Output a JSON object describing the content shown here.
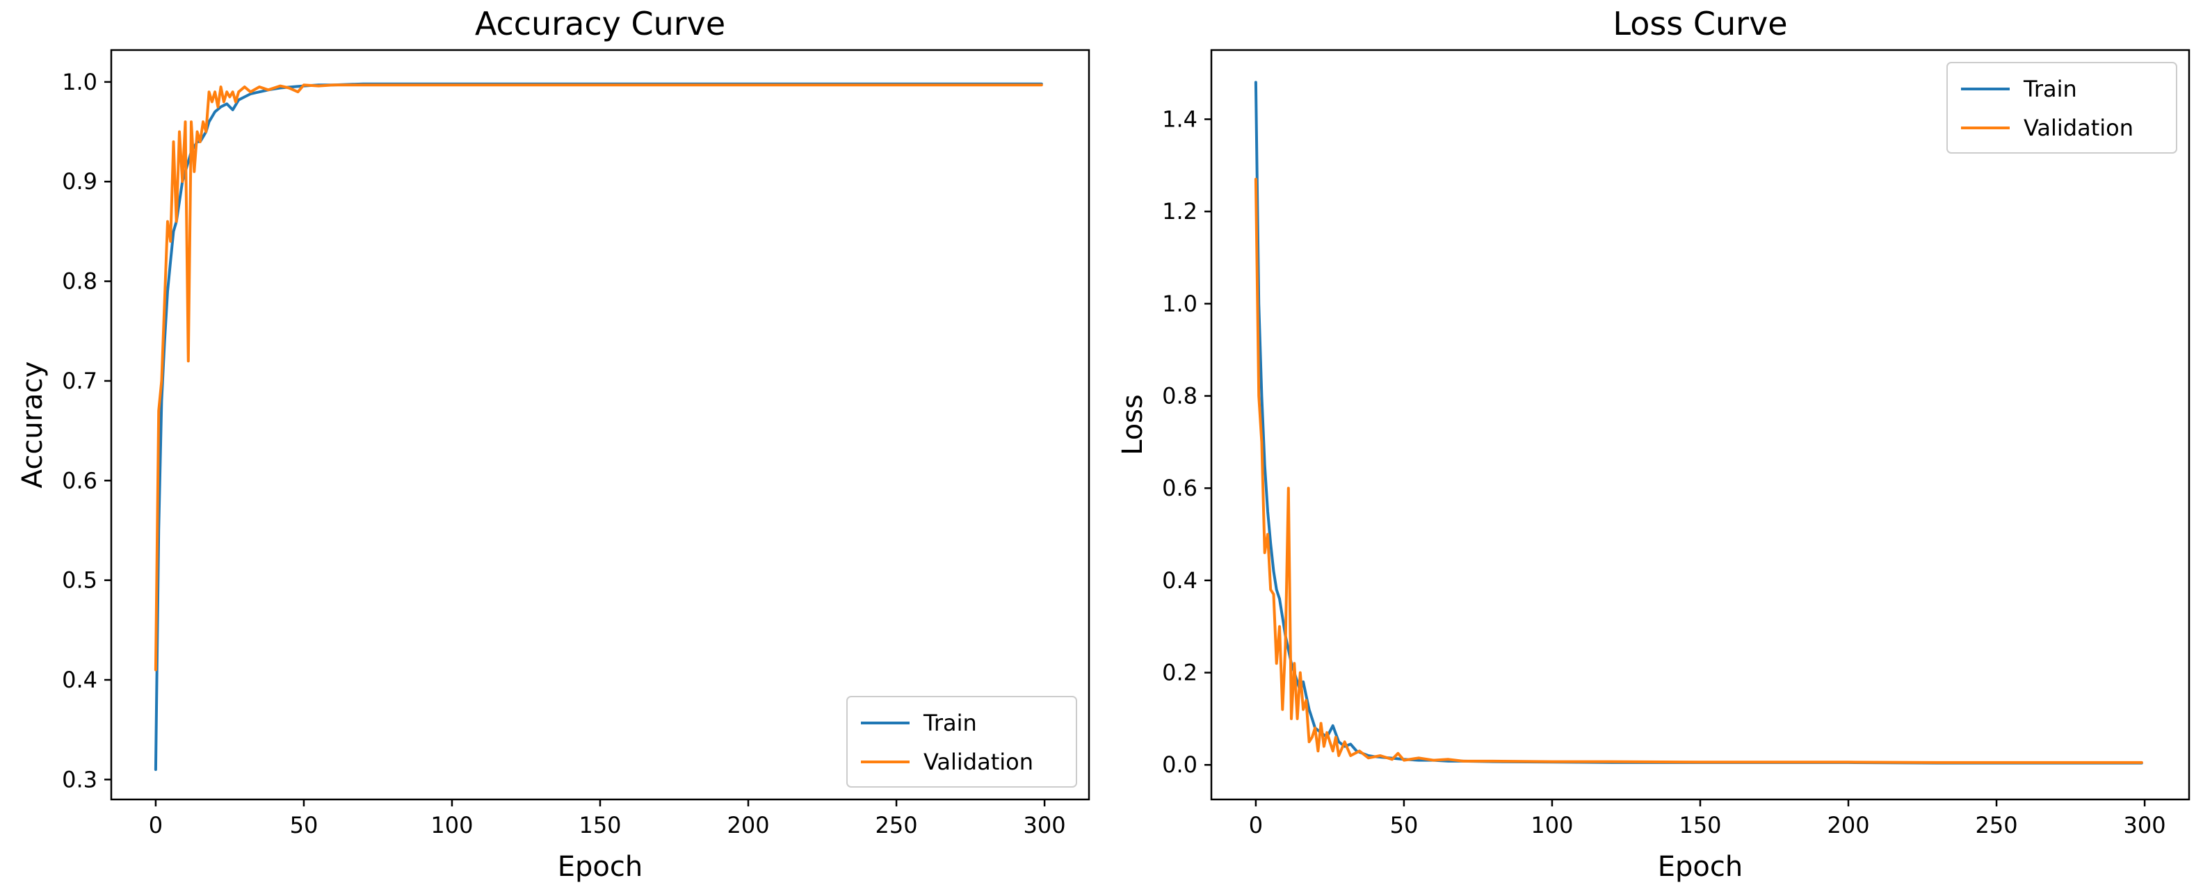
{
  "chart_data": [
    {
      "type": "line",
      "title": "Accuracy Curve",
      "xlabel": "Epoch",
      "ylabel": "Accuracy",
      "xlim": [
        -15,
        315
      ],
      "ylim": [
        0.28,
        1.032
      ],
      "xticks": [
        0,
        50,
        100,
        150,
        200,
        250,
        300
      ],
      "yticks": [
        0.3,
        0.4,
        0.5,
        0.6,
        0.7,
        0.8,
        0.9,
        1.0
      ],
      "ytick_labels": [
        "0.3",
        "0.4",
        "0.5",
        "0.6",
        "0.7",
        "0.8",
        "0.9",
        "1.0"
      ],
      "legend_position": "lower-right",
      "grid": false,
      "series": [
        {
          "name": "Train",
          "color": "#1f77b4",
          "x": [
            0,
            1,
            2,
            3,
            4,
            5,
            6,
            7,
            8,
            9,
            10,
            11,
            12,
            13,
            14,
            15,
            16,
            17,
            18,
            19,
            20,
            22,
            24,
            26,
            28,
            30,
            32,
            35,
            38,
            42,
            46,
            50,
            55,
            60,
            70,
            80,
            100,
            120,
            150,
            180,
            200,
            230,
            260,
            280,
            299
          ],
          "y": [
            0.31,
            0.55,
            0.68,
            0.74,
            0.79,
            0.82,
            0.85,
            0.86,
            0.88,
            0.9,
            0.91,
            0.92,
            0.93,
            0.935,
            0.94,
            0.94,
            0.945,
            0.95,
            0.96,
            0.965,
            0.97,
            0.975,
            0.978,
            0.972,
            0.982,
            0.985,
            0.988,
            0.99,
            0.992,
            0.994,
            0.995,
            0.996,
            0.997,
            0.997,
            0.998,
            0.998,
            0.998,
            0.998,
            0.998,
            0.998,
            0.998,
            0.998,
            0.998,
            0.998,
            0.998
          ]
        },
        {
          "name": "Validation",
          "color": "#ff7f0e",
          "x": [
            0,
            1,
            2,
            3,
            4,
            5,
            6,
            7,
            8,
            9,
            10,
            11,
            12,
            13,
            14,
            15,
            16,
            17,
            18,
            19,
            20,
            21,
            22,
            23,
            24,
            25,
            26,
            27,
            28,
            30,
            32,
            35,
            38,
            42,
            45,
            48,
            50,
            55,
            60,
            70,
            80,
            100,
            120,
            150,
            180,
            200,
            230,
            260,
            280,
            299
          ],
          "y": [
            0.41,
            0.67,
            0.7,
            0.78,
            0.86,
            0.84,
            0.94,
            0.86,
            0.95,
            0.9,
            0.96,
            0.72,
            0.96,
            0.91,
            0.95,
            0.94,
            0.96,
            0.95,
            0.99,
            0.98,
            0.99,
            0.975,
            0.995,
            0.98,
            0.99,
            0.985,
            0.99,
            0.98,
            0.99,
            0.995,
            0.99,
            0.995,
            0.992,
            0.996,
            0.994,
            0.99,
            0.997,
            0.996,
            0.997,
            0.997,
            0.997,
            0.997,
            0.997,
            0.997,
            0.997,
            0.997,
            0.997,
            0.997,
            0.997,
            0.997
          ]
        }
      ]
    },
    {
      "type": "line",
      "title": "Loss Curve",
      "xlabel": "Epoch",
      "ylabel": "Loss",
      "xlim": [
        -15,
        315
      ],
      "ylim": [
        -0.075,
        1.55
      ],
      "xticks": [
        0,
        50,
        100,
        150,
        200,
        250,
        300
      ],
      "yticks": [
        0.0,
        0.2,
        0.4,
        0.6,
        0.8,
        1.0,
        1.2,
        1.4
      ],
      "ytick_labels": [
        "0.0",
        "0.2",
        "0.4",
        "0.6",
        "0.8",
        "1.0",
        "1.2",
        "1.4"
      ],
      "legend_position": "upper-right",
      "grid": false,
      "series": [
        {
          "name": "Train",
          "color": "#1f77b4",
          "x": [
            0,
            1,
            2,
            3,
            4,
            5,
            6,
            7,
            8,
            9,
            10,
            11,
            12,
            13,
            14,
            15,
            16,
            17,
            18,
            19,
            20,
            22,
            24,
            26,
            28,
            30,
            32,
            34,
            36,
            38,
            40,
            45,
            50,
            55,
            60,
            65,
            70,
            80,
            100,
            120,
            150,
            180,
            200,
            230,
            260,
            280,
            299
          ],
          "y": [
            1.48,
            1.0,
            0.8,
            0.65,
            0.55,
            0.48,
            0.42,
            0.38,
            0.36,
            0.32,
            0.28,
            0.25,
            0.22,
            0.2,
            0.18,
            0.16,
            0.18,
            0.15,
            0.12,
            0.1,
            0.08,
            0.07,
            0.06,
            0.085,
            0.05,
            0.04,
            0.045,
            0.03,
            0.025,
            0.02,
            0.018,
            0.015,
            0.012,
            0.01,
            0.01,
            0.008,
            0.008,
            0.007,
            0.006,
            0.005,
            0.005,
            0.005,
            0.005,
            0.004,
            0.004,
            0.004,
            0.004
          ]
        },
        {
          "name": "Validation",
          "color": "#ff7f0e",
          "x": [
            0,
            1,
            2,
            3,
            4,
            5,
            6,
            7,
            8,
            9,
            10,
            11,
            12,
            13,
            14,
            15,
            16,
            17,
            18,
            19,
            20,
            21,
            22,
            23,
            24,
            25,
            26,
            27,
            28,
            30,
            32,
            35,
            38,
            42,
            46,
            48,
            50,
            55,
            60,
            65,
            70,
            80,
            100,
            120,
            150,
            180,
            200,
            230,
            260,
            280,
            299
          ],
          "y": [
            1.27,
            0.8,
            0.7,
            0.46,
            0.5,
            0.38,
            0.37,
            0.22,
            0.3,
            0.12,
            0.26,
            0.6,
            0.1,
            0.22,
            0.1,
            0.2,
            0.12,
            0.14,
            0.05,
            0.06,
            0.08,
            0.03,
            0.09,
            0.04,
            0.07,
            0.05,
            0.03,
            0.06,
            0.02,
            0.05,
            0.02,
            0.03,
            0.015,
            0.02,
            0.012,
            0.025,
            0.01,
            0.015,
            0.01,
            0.012,
            0.008,
            0.008,
            0.007,
            0.007,
            0.006,
            0.006,
            0.006,
            0.005,
            0.005,
            0.005,
            0.005
          ]
        }
      ]
    }
  ]
}
